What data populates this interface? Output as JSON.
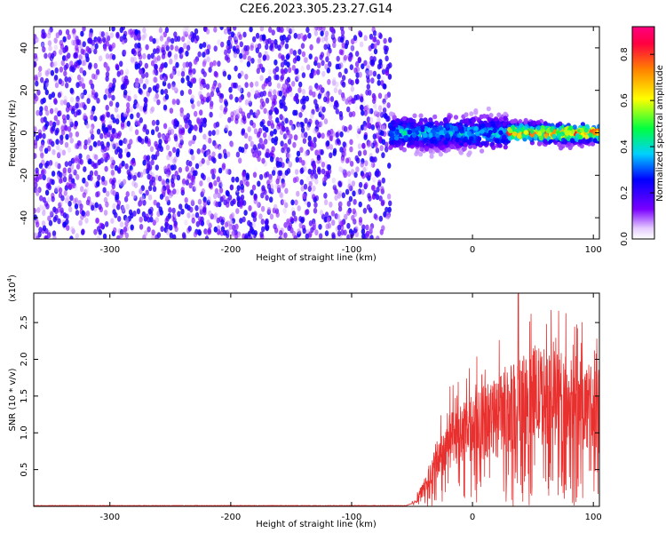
{
  "title": "C2E6.2023.305.23.27.G14",
  "chart_data": [
    {
      "type": "heatmap",
      "xlabel": "Height of straight line (km)",
      "ylabel": "Frequency (Hz)",
      "xlim": [
        -363,
        105
      ],
      "ylim": [
        -50,
        50
      ],
      "xticks": [
        -300,
        -200,
        -100,
        0,
        100
      ],
      "yticks": [
        -40,
        -20,
        0,
        20,
        40
      ],
      "regions": [
        {
          "x": [
            -363,
            -68
          ],
          "y_center": 0,
          "y_halfwidth": 50,
          "amplitude": [
            0.0,
            0.25
          ]
        },
        {
          "x": [
            -68,
            30
          ],
          "y_center": 0,
          "y_halfwidth": 9,
          "amplitude": [
            0.05,
            0.45
          ]
        },
        {
          "x": [
            30,
            105
          ],
          "y_center": 0,
          "y_halfwidth": 5,
          "amplitude": [
            0.1,
            0.95
          ]
        }
      ],
      "colorbar": {
        "label": "Normalized spectral amplitude",
        "range": [
          0.0,
          0.92
        ],
        "ticks": [
          "0.0",
          "0.2",
          "0.4",
          "0.6",
          "0.8"
        ],
        "tick_values": [
          0.0,
          0.2,
          0.4,
          0.6,
          0.8
        ],
        "colormap": [
          "#ffffff",
          "#7a00ff",
          "#0000ff",
          "#00d0ff",
          "#00ff40",
          "#ffff00",
          "#ff8000",
          "#ff0040"
        ]
      }
    },
    {
      "type": "line",
      "xlabel": "Height of straight line (km)",
      "ylabel": "SNR (10 * v/v)",
      "y_multiplier": "(x10",
      "y_multiplier_exp": "4",
      "y_multiplier_close": ")",
      "xlim": [
        -363,
        105
      ],
      "ylim": [
        0,
        2.9
      ],
      "xticks": [
        -300,
        -200,
        -100,
        0,
        100
      ],
      "yticks": [
        "0.5",
        "1.0",
        "1.5",
        "2.0",
        "2.5"
      ],
      "ytick_values": [
        0.5,
        1.0,
        1.5,
        2.0,
        2.5
      ],
      "series": [
        {
          "color": "#e8302e",
          "envelope": [
            {
              "x": -363,
              "y": 0.01
            },
            {
              "x": -55,
              "y": 0.01
            },
            {
              "x": -48,
              "y": 0.05
            },
            {
              "x": -40,
              "y": 0.25
            },
            {
              "x": -30,
              "y": 0.6
            },
            {
              "x": -20,
              "y": 0.85
            },
            {
              "x": -10,
              "y": 0.95
            },
            {
              "x": 0,
              "y": 1.05
            },
            {
              "x": 10,
              "y": 1.15
            },
            {
              "x": 20,
              "y": 1.2
            },
            {
              "x": 35,
              "y": 1.35
            },
            {
              "x": 50,
              "y": 1.5
            },
            {
              "x": 65,
              "y": 1.5
            },
            {
              "x": 80,
              "y": 1.4
            },
            {
              "x": 95,
              "y": 1.35
            },
            {
              "x": 105,
              "y": 1.3
            }
          ],
          "peak": {
            "x": 38,
            "y": 2.9
          }
        }
      ]
    }
  ]
}
